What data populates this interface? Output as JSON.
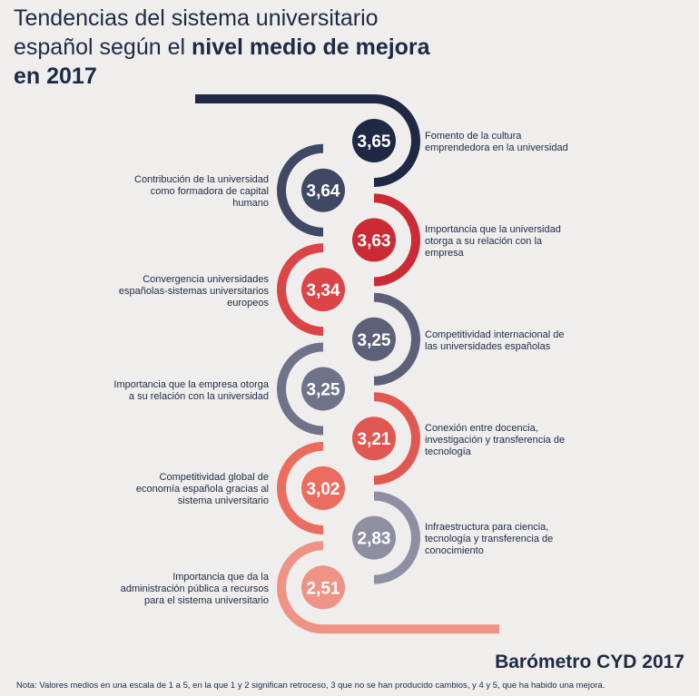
{
  "title": {
    "part1": "Tendencias del sistema universitario español según el ",
    "part2": "nivel medio de mejora en 2017"
  },
  "brand": "Barómetro CYD 2017",
  "note": "Nota: Valores medios en una escala de 1 a 5, en la que 1 y 2 significan retroceso, 3 que no se han producido cambios, y 4 y 5, que ha habido una mejora.",
  "chart_data": {
    "type": "bar",
    "scale": [
      1,
      5
    ],
    "categories": [
      "Fomento de la cultura emprendedora en la universidad",
      "Contribución de la universidad como formadora de capital humano",
      "Importancia que la universidad otorga a su relación con la empresa",
      "Convergencia universidades españolas-sistemas universitarios europeos",
      "Competitividad internacional de las universidades españolas",
      "Importancia que la empresa otorga a su relación con la universidad",
      "Conexión entre docencia, investigación y transferencia de tecnología",
      "Competitividad global de economía española gracias al sistema universitario",
      "Infraestructura para ciencia, tecnología y transferencia de conocimiento",
      "Importancia que da la administración pública a recursos para el sistema universitario"
    ],
    "values": [
      3.65,
      3.64,
      3.63,
      3.34,
      3.25,
      3.25,
      3.21,
      3.02,
      2.83,
      2.51
    ],
    "value_labels": [
      "3,65",
      "3,64",
      "3,63",
      "3,34",
      "3,25",
      "3,25",
      "3,21",
      "3,02",
      "2,83",
      "2,51"
    ],
    "label_lines": [
      [
        "Fomento de la cultura",
        "emprendedora en la universidad"
      ],
      [
        "Contribución de la universidad",
        "como formadora de capital",
        "humano"
      ],
      [
        "Importancia que la universidad",
        "otorga a su relación con la",
        "empresa"
      ],
      [
        "Convergencia universidades",
        "españolas-sistemas universitarios",
        "europeos"
      ],
      [
        "Competitividad internacional de",
        "las universidades españolas"
      ],
      [
        "Importancia que la empresa otorga",
        "a su relación con la universidad"
      ],
      [
        "Conexión entre docencia,",
        "investigación y transferencia de",
        "tecnología"
      ],
      [
        "Competitividad global de",
        "economía española gracias al",
        "sistema universitario"
      ],
      [
        "Infraestructura para ciencia,",
        "tecnología y transferencia de",
        "conocimiento"
      ],
      [
        "Importancia que da la",
        "administración pública a recursos",
        "para el sistema universitario"
      ]
    ],
    "label_side": [
      "right",
      "left",
      "right",
      "left",
      "right",
      "left",
      "right",
      "left",
      "right",
      "left"
    ],
    "colors": [
      "#1f2845",
      "#414863",
      "#cc2a35",
      "#dc4448",
      "#5c6079",
      "#6f7389",
      "#e15752",
      "#ea6d5f",
      "#8e8fa1",
      "#ee9385"
    ]
  }
}
